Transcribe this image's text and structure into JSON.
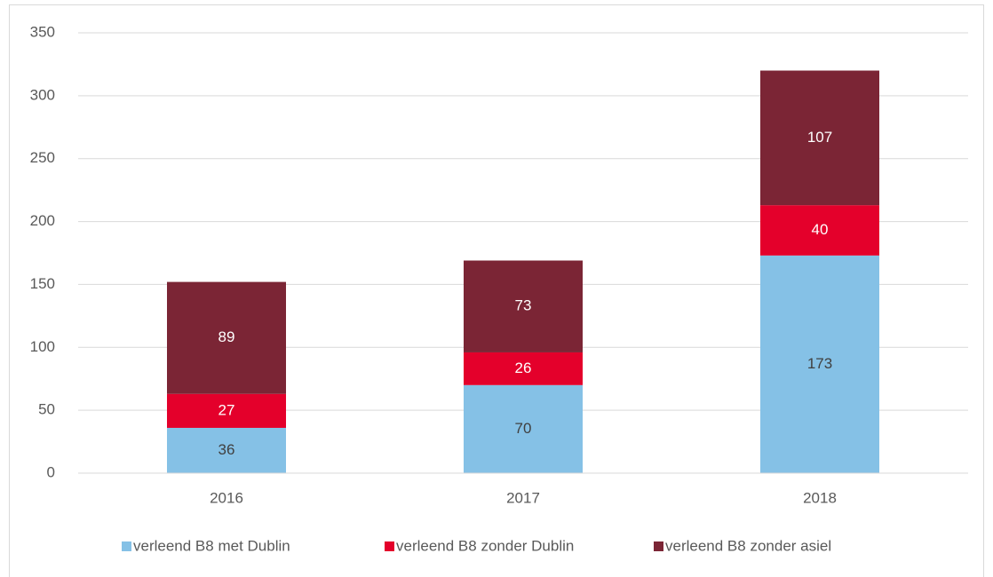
{
  "chart_data": {
    "type": "stacked_bar",
    "categories": [
      "2016",
      "2017",
      "2018"
    ],
    "series": [
      {
        "name": "verleend B8 met Dublin",
        "color": "#85c1e6",
        "values": [
          36,
          70,
          173
        ]
      },
      {
        "name": "verleend B8 zonder Dublin",
        "color": "#e4002b",
        "values": [
          27,
          26,
          40
        ]
      },
      {
        "name": "verleend B8 zonder asiel",
        "color": "#7b2535",
        "values": [
          89,
          73,
          107
        ]
      }
    ],
    "ylim": [
      0,
      350
    ],
    "yticks": [
      0,
      50,
      100,
      150,
      200,
      250,
      300,
      350
    ],
    "grid": true,
    "legend": "bottom"
  }
}
